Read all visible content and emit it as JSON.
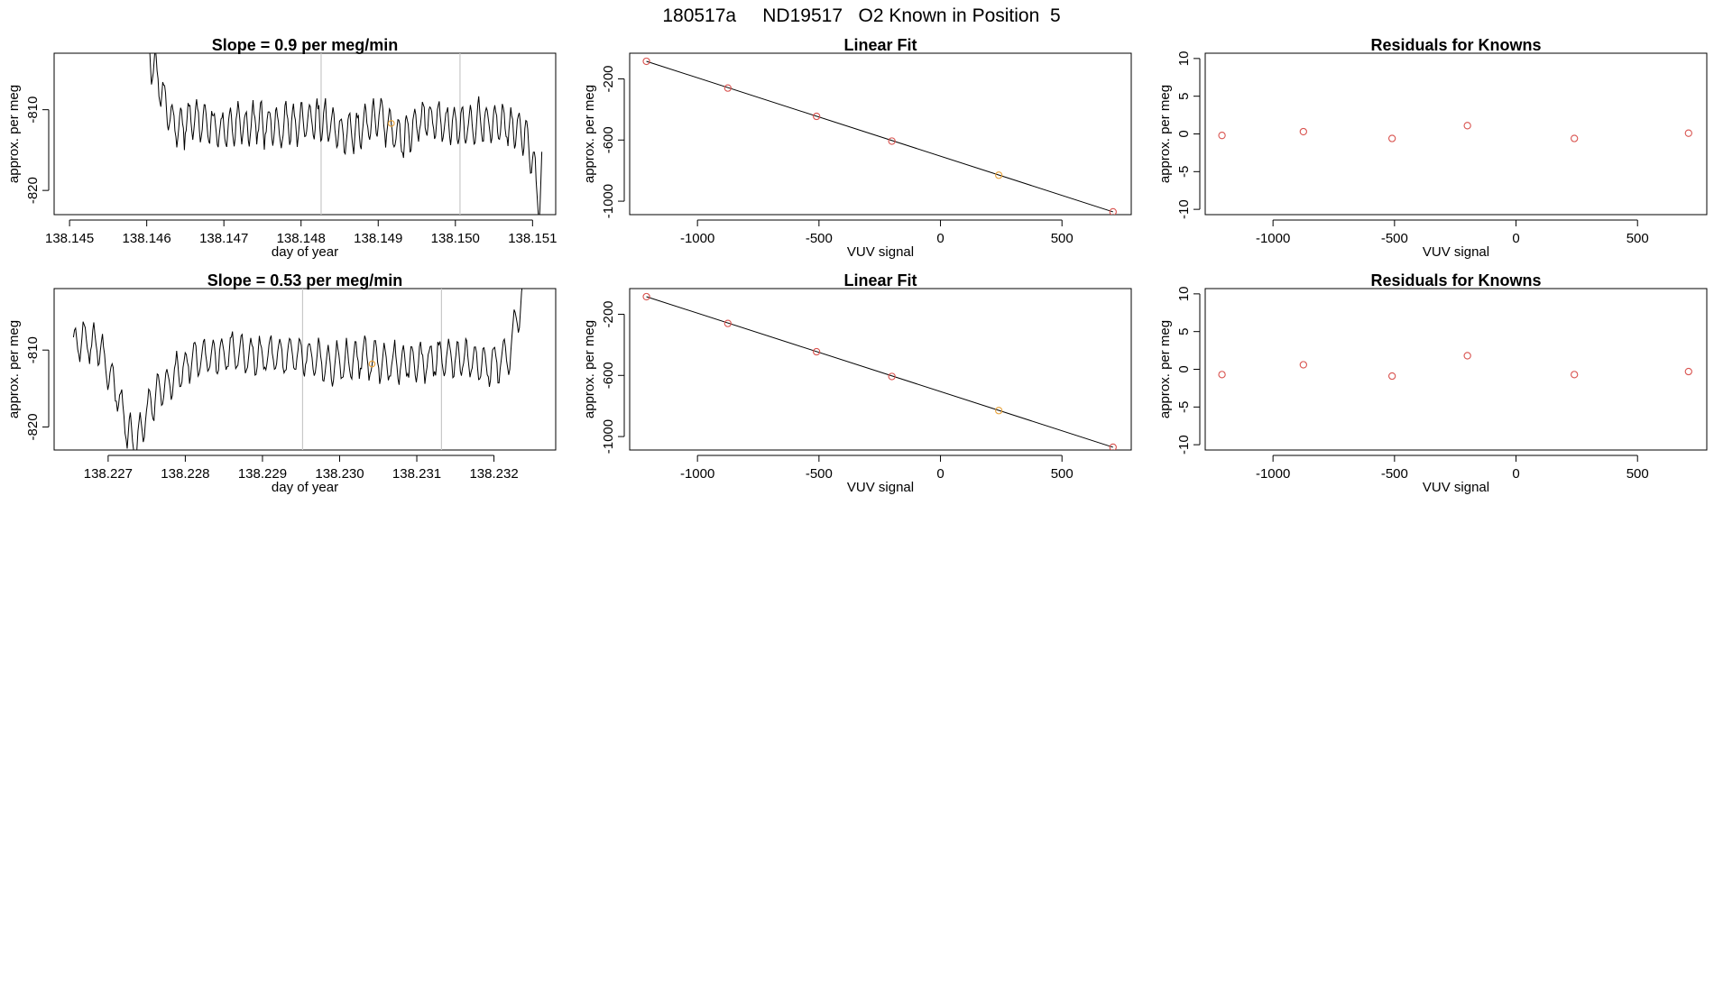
{
  "figure_title": "180517a     ND19517   O2 Known in Position  5",
  "colors": {
    "trace": "#000000",
    "point": "#d9534f",
    "highlight": "#e8a33b",
    "grid": "#c8c8c8",
    "frame": "#000000"
  },
  "chart_data": [
    {
      "id": "ts1",
      "type": "line",
      "title": "Slope =  0.9  per meg/min",
      "xlabel": "day of year",
      "ylabel": "approx. per meg",
      "xlim": [
        138.1448,
        138.1513
      ],
      "ylim": [
        -823.0,
        -803.0
      ],
      "xticks": [
        138.145,
        138.146,
        138.147,
        138.148,
        138.149,
        138.15,
        138.151
      ],
      "xtick_labels": [
        "138.145",
        "138.146",
        "138.147",
        "138.148",
        "138.149",
        "138.150",
        "138.151"
      ],
      "yticks": [
        -810,
        -820
      ],
      "ytick_labels": [
        "-810",
        "-820"
      ],
      "vlines": [
        138.14826,
        138.15006
      ],
      "highlight_point": {
        "x": 138.14917,
        "y": -811.7
      },
      "x_start": 138.146,
      "x_end": 138.15112,
      "anchors": [
        [
          138.146,
          -803.0
        ],
        [
          138.1461,
          -805.0
        ],
        [
          138.1462,
          -808.0
        ],
        [
          138.1463,
          -811.0
        ],
        [
          138.1464,
          -812.5
        ],
        [
          138.1466,
          -811.0
        ],
        [
          138.147,
          -812.5
        ],
        [
          138.1474,
          -811.5
        ],
        [
          138.1478,
          -812.0
        ],
        [
          138.1482,
          -811.0
        ],
        [
          138.1486,
          -813.0
        ],
        [
          138.149,
          -811.0
        ],
        [
          138.1493,
          -813.5
        ],
        [
          138.1496,
          -811.0
        ],
        [
          138.15,
          -812.0
        ],
        [
          138.1504,
          -811.5
        ],
        [
          138.1507,
          -812.0
        ],
        [
          138.1509,
          -813.0
        ],
        [
          138.151,
          -816.0
        ],
        [
          138.1511,
          -822.5
        ],
        [
          138.15112,
          -817.0
        ]
      ]
    },
    {
      "id": "fit1",
      "type": "scatter",
      "title": "Linear Fit",
      "xlabel": "VUV signal",
      "ylabel": "approx. per meg",
      "xlim": [
        -1279,
        785
      ],
      "ylim": [
        -1088,
        -32
      ],
      "xticks": [
        -1000,
        -500,
        0,
        500
      ],
      "xtick_labels": [
        "-1000",
        "-500",
        "0",
        "500"
      ],
      "yticks": [
        -200,
        -600,
        -1000
      ],
      "ytick_labels": [
        "-200",
        "-600",
        "-1000"
      ],
      "points": [
        {
          "x": -1210,
          "y": -85,
          "role": "known"
        },
        {
          "x": -875,
          "y": -260,
          "role": "known"
        },
        {
          "x": -510,
          "y": -445,
          "role": "known"
        },
        {
          "x": -200,
          "y": -607,
          "role": "known"
        },
        {
          "x": 240,
          "y": -830,
          "role": "highlight"
        },
        {
          "x": 710,
          "y": -1070,
          "role": "known"
        }
      ],
      "fit_line": {
        "x1": -1210,
        "y1": -85,
        "x2": 710,
        "y2": -1070
      }
    },
    {
      "id": "res1",
      "type": "scatter",
      "title": "Residuals for Knowns",
      "xlabel": "VUV signal",
      "ylabel": "approx. per meg",
      "xlim": [
        -1279,
        785
      ],
      "ylim": [
        -10.7,
        10.7
      ],
      "xticks": [
        -1000,
        -500,
        0,
        500
      ],
      "xtick_labels": [
        "-1000",
        "-500",
        "0",
        "500"
      ],
      "yticks": [
        10,
        5,
        0,
        -5,
        -10
      ],
      "ytick_labels": [
        "10",
        "5",
        "0",
        "-5",
        "-10"
      ],
      "points": [
        {
          "x": -1210,
          "y": -0.2
        },
        {
          "x": -875,
          "y": 0.3
        },
        {
          "x": -510,
          "y": -0.6
        },
        {
          "x": -200,
          "y": 1.1
        },
        {
          "x": 240,
          "y": -0.6
        },
        {
          "x": 710,
          "y": 0.1
        }
      ]
    },
    {
      "id": "ts2",
      "type": "line",
      "title": "Slope =  0.53  per meg/min",
      "xlabel": "day of year",
      "ylabel": "approx. per meg",
      "xlim": [
        138.2263,
        138.2328
      ],
      "ylim": [
        -823.0,
        -802.0
      ],
      "xticks": [
        138.227,
        138.228,
        138.229,
        138.23,
        138.231,
        138.232
      ],
      "xtick_labels": [
        "138.227",
        "138.228",
        "138.229",
        "138.230",
        "138.231",
        "138.232"
      ],
      "yticks": [
        -810,
        -820
      ],
      "ytick_labels": [
        "-810",
        "-820"
      ],
      "vlines": [
        138.22952,
        138.23132
      ],
      "highlight_point": {
        "x": 138.23042,
        "y": -811.8
      },
      "x_start": 138.22655,
      "x_end": 138.2324,
      "anchors": [
        [
          138.22655,
          -809.5
        ],
        [
          138.2267,
          -808.5
        ],
        [
          138.2269,
          -810.0
        ],
        [
          138.2271,
          -815.0
        ],
        [
          138.2272,
          -819.0
        ],
        [
          138.22735,
          -822.5
        ],
        [
          138.2275,
          -818.0
        ],
        [
          138.2277,
          -815.0
        ],
        [
          138.2279,
          -813.0
        ],
        [
          138.2281,
          -811.0
        ],
        [
          138.2286,
          -810.5
        ],
        [
          138.229,
          -811.0
        ],
        [
          138.2295,
          -810.5
        ],
        [
          138.2299,
          -812.0
        ],
        [
          138.2303,
          -811.0
        ],
        [
          138.2307,
          -812.0
        ],
        [
          138.2311,
          -811.5
        ],
        [
          138.2315,
          -811.0
        ],
        [
          138.2319,
          -812.0
        ],
        [
          138.2322,
          -811.0
        ],
        [
          138.2323,
          -806.0
        ],
        [
          138.2324,
          -802.0
        ]
      ]
    },
    {
      "id": "fit2",
      "type": "scatter",
      "title": "Linear Fit",
      "xlabel": "VUV signal",
      "ylabel": "approx. per meg",
      "xlim": [
        -1279,
        785
      ],
      "ylim": [
        -1088,
        -32
      ],
      "xticks": [
        -1000,
        -500,
        0,
        500
      ],
      "xtick_labels": [
        "-1000",
        "-500",
        "0",
        "500"
      ],
      "yticks": [
        -200,
        -600,
        -1000
      ],
      "ytick_labels": [
        "-200",
        "-600",
        "-1000"
      ],
      "points": [
        {
          "x": -1210,
          "y": -85,
          "role": "known"
        },
        {
          "x": -875,
          "y": -260,
          "role": "known"
        },
        {
          "x": -510,
          "y": -445,
          "role": "known"
        },
        {
          "x": -200,
          "y": -607,
          "role": "known"
        },
        {
          "x": 240,
          "y": -830,
          "role": "highlight"
        },
        {
          "x": 710,
          "y": -1070,
          "role": "known"
        }
      ],
      "fit_line": {
        "x1": -1210,
        "y1": -85,
        "x2": 710,
        "y2": -1070
      }
    },
    {
      "id": "res2",
      "type": "scatter",
      "title": "Residuals for Knowns",
      "xlabel": "VUV signal",
      "ylabel": "approx. per meg",
      "xlim": [
        -1279,
        785
      ],
      "ylim": [
        -10.7,
        10.7
      ],
      "xticks": [
        -1000,
        -500,
        0,
        500
      ],
      "xtick_labels": [
        "-1000",
        "-500",
        "0",
        "500"
      ],
      "yticks": [
        10,
        5,
        0,
        -5,
        -10
      ],
      "ytick_labels": [
        "10",
        "5",
        "0",
        "-5",
        "-10"
      ],
      "points": [
        {
          "x": -1210,
          "y": -0.7
        },
        {
          "x": -875,
          "y": 0.6
        },
        {
          "x": -510,
          "y": -0.9
        },
        {
          "x": -200,
          "y": 1.8
        },
        {
          "x": 240,
          "y": -0.7
        },
        {
          "x": 710,
          "y": -0.3
        }
      ]
    }
  ]
}
